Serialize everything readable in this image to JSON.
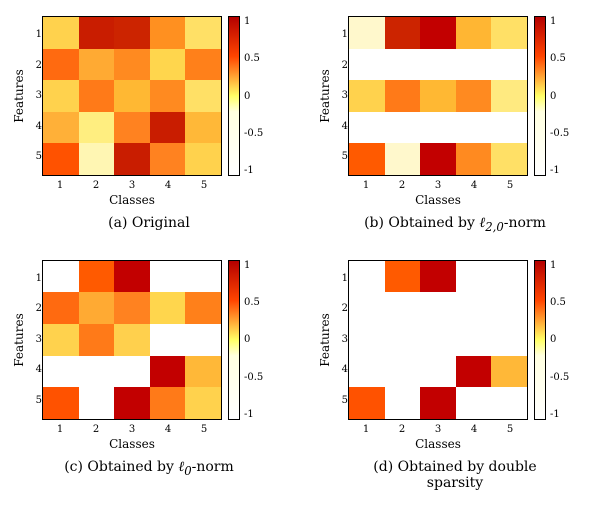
{
  "background_color": "#ffffff",
  "tick_fontsize": 10,
  "label_fontsize": 12,
  "caption_fontsize": 14,
  "cell_size": 5,
  "x_label": "Classes",
  "y_label": "Features",
  "x_ticks": [
    "1",
    "2",
    "3",
    "4",
    "5"
  ],
  "y_ticks": [
    "1",
    "2",
    "3",
    "4",
    "5"
  ],
  "colorbar": {
    "ticks": [
      "1",
      "0.5",
      "0",
      "-0.5",
      "-1"
    ],
    "gradient_css": "linear-gradient(to bottom, #b40000 0%, #ff4500 25%, #ffff66 50%, #ffffe0 60%, #ffffff 100%)"
  },
  "captions": {
    "a": "(a) Original",
    "b_prefix": "(b) Obtained by ",
    "b_sym": "ℓ",
    "b_sub": "2,0",
    "b_suffix": "-norm",
    "c_prefix": "(c) Obtained by ",
    "c_sym": "ℓ",
    "c_sub": "0",
    "c_suffix": "-norm",
    "d": "(d) Obtained by double sparsity"
  },
  "panels": {
    "a": {
      "values": [
        [
          0.55,
          0.95,
          0.92,
          0.6,
          0.4
        ],
        [
          0.78,
          0.5,
          0.7,
          0.45,
          0.65
        ],
        [
          0.45,
          0.72,
          0.5,
          0.62,
          0.38
        ],
        [
          0.5,
          0.35,
          0.68,
          0.95,
          0.5
        ],
        [
          0.85,
          0.2,
          0.95,
          0.68,
          0.42
        ]
      ],
      "colors": [
        [
          "#ffd24d",
          "#c91d00",
          "#cc2400",
          "#ff9020",
          "#ffe066"
        ],
        [
          "#ff6a10",
          "#ffaa33",
          "#ff8a20",
          "#ffd64d",
          "#ff801a"
        ],
        [
          "#ffd24d",
          "#ff7a18",
          "#ffb833",
          "#ff8a20",
          "#ffe066"
        ],
        [
          "#ffb038",
          "#ffee80",
          "#ff8220",
          "#c91d00",
          "#ffb838"
        ],
        [
          "#ff5200",
          "#fff6b3",
          "#c91d00",
          "#ff8220",
          "#ffd24d"
        ]
      ]
    },
    "b": {
      "values": [
        [
          0.1,
          0.92,
          0.95,
          0.55,
          0.35
        ],
        [
          0.0,
          0.0,
          0.0,
          0.0,
          0.0
        ],
        [
          0.42,
          0.7,
          0.48,
          0.62,
          0.35
        ],
        [
          0.0,
          0.0,
          0.0,
          0.0,
          0.0
        ],
        [
          0.8,
          0.18,
          0.95,
          0.65,
          0.4
        ]
      ],
      "colors": [
        [
          "#fff8cc",
          "#cc2400",
          "#c20000",
          "#ffb633",
          "#ffe066"
        ],
        [
          "#ffffff",
          "#ffffff",
          "#ffffff",
          "#ffffff",
          "#ffffff"
        ],
        [
          "#ffd24d",
          "#ff7a18",
          "#ffb833",
          "#ff8a20",
          "#ffea80"
        ],
        [
          "#ffffff",
          "#ffffff",
          "#ffffff",
          "#ffffff",
          "#ffffff"
        ],
        [
          "#ff5a00",
          "#fff8cc",
          "#c20000",
          "#ff8a20",
          "#ffe066"
        ]
      ]
    },
    "c": {
      "values": [
        [
          0.0,
          0.85,
          0.95,
          0.0,
          0.0
        ],
        [
          0.78,
          0.55,
          0.68,
          0.42,
          0.62
        ],
        [
          0.42,
          0.7,
          0.45,
          0.0,
          0.0
        ],
        [
          0.0,
          0.0,
          0.0,
          0.95,
          0.55
        ],
        [
          0.85,
          0.0,
          0.95,
          0.7,
          0.4
        ]
      ],
      "colors": [
        [
          "#ffffff",
          "#ff5a00",
          "#c20000",
          "#ffffff",
          "#ffffff"
        ],
        [
          "#ff6a10",
          "#ffaa33",
          "#ff8220",
          "#ffd64d",
          "#ff801a"
        ],
        [
          "#ffd24d",
          "#ff7a18",
          "#ffd04d",
          "#ffffff",
          "#ffffff"
        ],
        [
          "#ffffff",
          "#ffffff",
          "#ffffff",
          "#c20000",
          "#ffb838"
        ],
        [
          "#ff5200",
          "#ffffff",
          "#c20000",
          "#ff7a18",
          "#ffd24d"
        ]
      ]
    },
    "d": {
      "values": [
        [
          0.0,
          0.85,
          0.95,
          0.0,
          0.0
        ],
        [
          0.0,
          0.0,
          0.0,
          0.0,
          0.0
        ],
        [
          0.0,
          0.0,
          0.0,
          0.0,
          0.0
        ],
        [
          0.0,
          0.0,
          0.0,
          0.95,
          0.55
        ],
        [
          0.85,
          0.0,
          0.95,
          0.0,
          0.0
        ]
      ],
      "colors": [
        [
          "#ffffff",
          "#ff5a00",
          "#c20000",
          "#ffffff",
          "#ffffff"
        ],
        [
          "#ffffff",
          "#ffffff",
          "#ffffff",
          "#ffffff",
          "#ffffff"
        ],
        [
          "#ffffff",
          "#ffffff",
          "#ffffff",
          "#ffffff",
          "#ffffff"
        ],
        [
          "#ffffff",
          "#ffffff",
          "#ffffff",
          "#c20000",
          "#ffb838"
        ],
        [
          "#ff5200",
          "#ffffff",
          "#c20000",
          "#ffffff",
          "#ffffff"
        ]
      ]
    }
  }
}
